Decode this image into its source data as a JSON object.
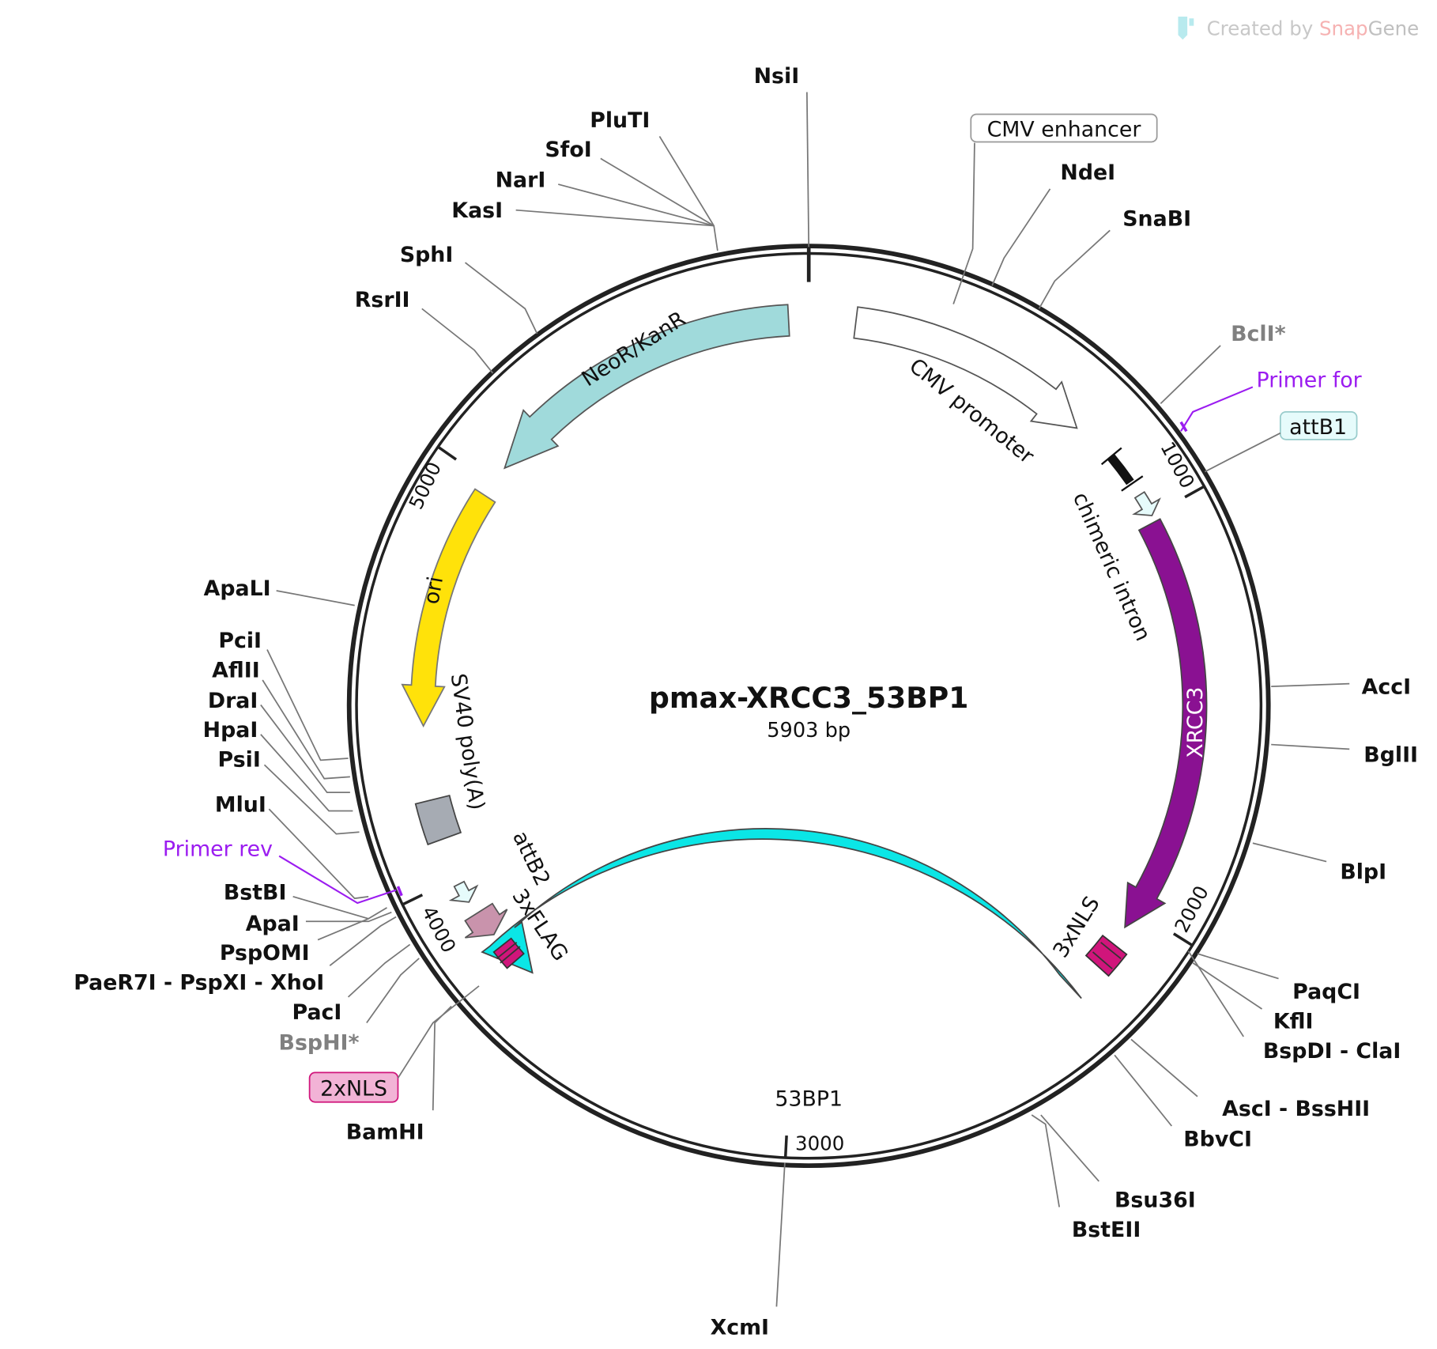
{
  "watermark": {
    "prefix": "Created by",
    "brand1": "Snap",
    "brand2": "Gene"
  },
  "plasmid": {
    "name": "pmax-XRCC3_53BP1",
    "length": "5903 bp",
    "length_bp": 5903
  },
  "ticks": [
    "1000",
    "2000",
    "3000",
    "4000",
    "5000"
  ],
  "features": {
    "cmv_promoter": "CMV promoter",
    "neo": "NeoR/KanR",
    "chimeric_intron": "chimeric intron",
    "ori": "ori",
    "sv40": "SV40 poly(A)",
    "attb2": "attB2",
    "flag": "3xFLAG",
    "nls3": "3xNLS",
    "xrcc3": "XRCC3",
    "bp53": "53BP1",
    "cmv_enhancer": "CMV enhancer",
    "attb1": "attB1",
    "nls2": "2xNLS"
  },
  "primers": {
    "for": "Primer for",
    "rev": "Primer rev"
  },
  "enzymes": [
    "NsiI",
    "PluTI",
    "SfoI",
    "NarI",
    "KasI",
    "SphI",
    "RsrII",
    "ApaLI",
    "PciI",
    "AflII",
    "DraI",
    "HpaI",
    "PsiI",
    "MluI",
    "BstBI",
    "ApaI",
    "PspOMI",
    "PaeR7I - PspXI - XhoI",
    "PacI",
    "BspHI*",
    "BamHI",
    "XcmI",
    "BstEII",
    "Bsu36I",
    "BbvCI",
    "AscI - BssHII",
    "BspDI - ClaI",
    "KflI",
    "PaqCI",
    "BlpI",
    "BglII",
    "AccI",
    "BclI*",
    "SnaBI",
    "NdeI"
  ],
  "colors": {
    "neo": "#a0dadb",
    "ori": "#ffe20a",
    "xrcc3": "#8a1192",
    "bp53": "#0be6e6",
    "nls": "#d0157b",
    "flag": "#c993ac",
    "sv40": "#a6abb3",
    "att": "#e6fbfb",
    "primer": "#9b1cf0"
  }
}
